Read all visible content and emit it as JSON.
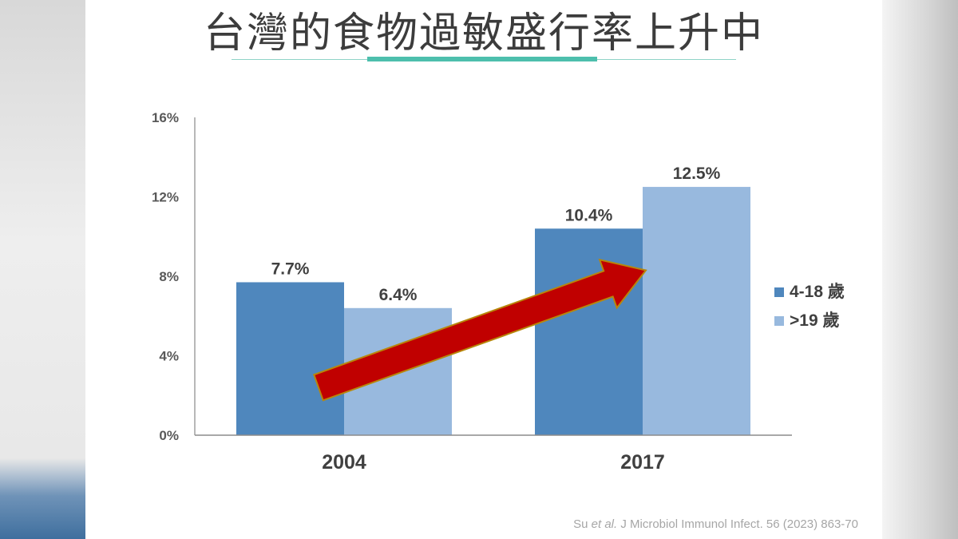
{
  "slide": {
    "title": "台灣的食物過敏盛行率上升中",
    "citation": {
      "author": "Su",
      "etal": "et al.",
      "rest": "J Microbiol Immunol Infect.  56 (2023) 863-70"
    }
  },
  "chart_data": {
    "type": "bar",
    "title": "",
    "xlabel": "",
    "ylabel": "",
    "categories": [
      "2004",
      "2017"
    ],
    "series": [
      {
        "name": "4-18 歲",
        "values": [
          7.7,
          10.4
        ],
        "labels": [
          "7.7%",
          "10.4%"
        ],
        "color": "#4f87bd"
      },
      {
        "name": ">19 歲",
        "values": [
          6.4,
          12.5
        ],
        "labels": [
          "6.4%",
          "12.5%"
        ],
        "color": "#98b9de"
      }
    ],
    "ylim": [
      0,
      16
    ],
    "yticks": [
      {
        "value": 0,
        "label": "0%"
      },
      {
        "value": 4,
        "label": "4%"
      },
      {
        "value": 8,
        "label": "8%"
      },
      {
        "value": 12,
        "label": "12%"
      },
      {
        "value": 16,
        "label": "16%"
      }
    ],
    "grid": false,
    "legend_position": "right",
    "annotation": {
      "type": "arrow",
      "from": {
        "x": "2004",
        "y": 2.2
      },
      "to": {
        "x": "2017",
        "y": 8.3
      },
      "color": "#c00000",
      "outline": "#b8860b"
    }
  }
}
